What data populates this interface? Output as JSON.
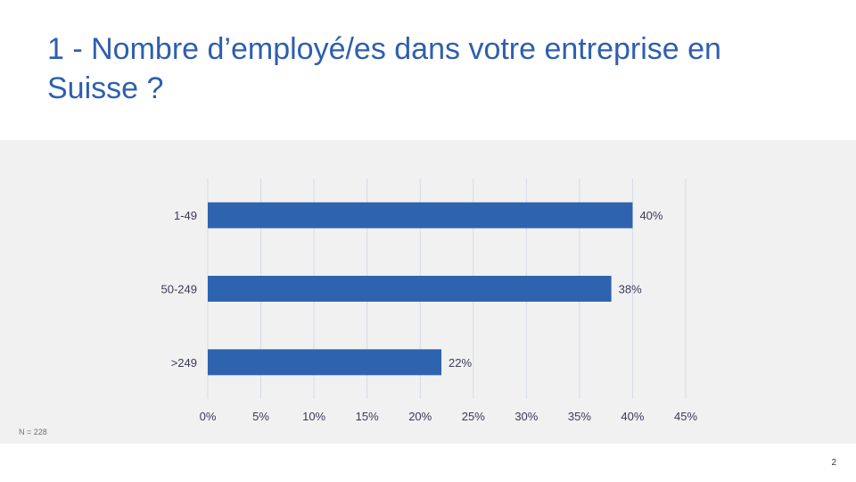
{
  "title": "1 - Nombre d’employé/es dans votre entreprise en Suisse ?",
  "note": "N = 228",
  "page_number": "2",
  "colors": {
    "title": "#2e5fae",
    "bar": "#2e63b0",
    "text": "#3a3a5a",
    "grid": "#d5dbe8",
    "panel": "#f1f1f1"
  },
  "chart_data": {
    "type": "bar",
    "orientation": "horizontal",
    "categories": [
      "1-49",
      "50-249",
      ">249"
    ],
    "series": [
      {
        "values": [
          40,
          38,
          22
        ]
      }
    ],
    "data_labels": [
      "40%",
      "38%",
      "22%"
    ],
    "xticks": [
      "0%",
      "5%",
      "10%",
      "15%",
      "20%",
      "25%",
      "30%",
      "35%",
      "40%",
      "45%"
    ],
    "xlim": [
      0,
      45
    ],
    "xlabel": "",
    "ylabel": "",
    "grid": "vertical",
    "legend": "none"
  }
}
